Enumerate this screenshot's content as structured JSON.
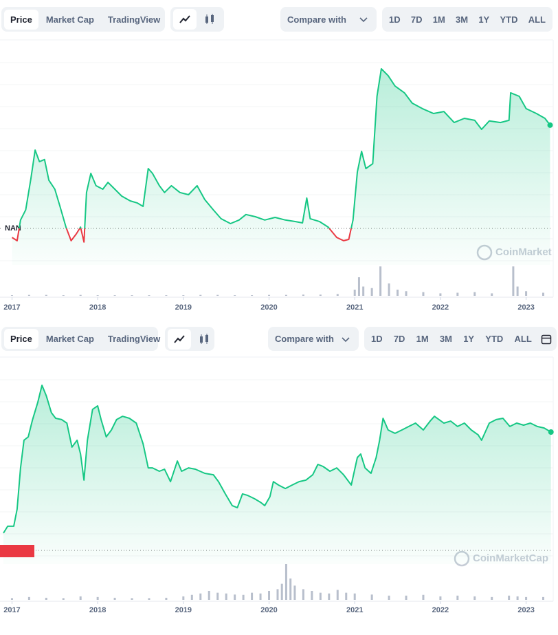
{
  "toolbars": [
    {
      "tabs": [
        "Price",
        "Market Cap",
        "TradingView"
      ],
      "compare": "Compare with",
      "ranges": [
        "1D",
        "7D",
        "1M",
        "3M",
        "1Y",
        "YTD",
        "ALL"
      ]
    },
    {
      "tabs": [
        "Price",
        "Market Cap",
        "TradingView"
      ],
      "compare": "Compare with",
      "ranges": [
        "1D",
        "7D",
        "1M",
        "3M",
        "1Y",
        "YTD",
        "ALL"
      ]
    }
  ],
  "chart_data": [
    {
      "type": "line",
      "color": "#16c784",
      "below_color": "#ea3943",
      "watermark": "CoinMarket",
      "baseline": {
        "value": 15,
        "label": "NAN"
      },
      "xlim": [
        2016.86,
        2023.3
      ],
      "ylim": [
        0,
        100
      ],
      "xticks": [
        2017,
        2018,
        2019,
        2020,
        2021,
        2022,
        2023
      ],
      "x": [
        2017.0,
        2017.06,
        2017.1,
        2017.16,
        2017.22,
        2017.27,
        2017.32,
        2017.38,
        2017.43,
        2017.5,
        2017.56,
        2017.63,
        2017.69,
        2017.75,
        2017.8,
        2017.84,
        2017.87,
        2017.92,
        2017.98,
        2018.06,
        2018.12,
        2018.2,
        2018.28,
        2018.38,
        2018.46,
        2018.53,
        2018.59,
        2018.64,
        2018.72,
        2018.78,
        2018.86,
        2018.96,
        2019.06,
        2019.16,
        2019.25,
        2019.35,
        2019.44,
        2019.55,
        2019.65,
        2019.73,
        2019.84,
        2019.95,
        2020.07,
        2020.19,
        2020.31,
        2020.39,
        2020.44,
        2020.48,
        2020.59,
        2020.69,
        2020.79,
        2020.87,
        2020.93,
        2020.98,
        2021.03,
        2021.08,
        2021.13,
        2021.21,
        2021.26,
        2021.31,
        2021.39,
        2021.47,
        2021.58,
        2021.67,
        2021.79,
        2021.92,
        2022.04,
        2022.16,
        2022.28,
        2022.4,
        2022.48,
        2022.57,
        2022.7,
        2022.8,
        2022.82,
        2022.92,
        2023.0,
        2023.12,
        2023.22,
        2023.28
      ],
      "values": [
        10.9,
        9.4,
        18.8,
        23.4,
        37.5,
        50.6,
        45.3,
        46.3,
        36.9,
        32.8,
        25,
        15.6,
        9.4,
        12.5,
        15.6,
        8.8,
        31.3,
        40,
        34.4,
        32.8,
        35.9,
        32.8,
        29.7,
        27.5,
        26.6,
        25,
        42.2,
        40,
        34.4,
        31.3,
        34.4,
        31.3,
        30.3,
        34.4,
        28.1,
        23.4,
        19.4,
        17.2,
        18.8,
        21.3,
        20.3,
        18.8,
        20,
        18.8,
        18.1,
        17.5,
        28.8,
        19.4,
        18.1,
        15.6,
        10.9,
        9.4,
        10,
        18.8,
        40.6,
        50,
        42.2,
        44.4,
        75,
        87.5,
        84.4,
        79.7,
        76.6,
        71.9,
        69.4,
        67.2,
        68.1,
        63.1,
        65,
        64.1,
        60,
        63.8,
        63.1,
        64.1,
        76.6,
        75,
        69.4,
        67.2,
        65,
        61.9
      ],
      "volume": {
        "color": "#b8bfcc",
        "ylim": [
          0,
          100
        ],
        "x": [
          2017.0,
          2017.2,
          2017.4,
          2017.6,
          2017.8,
          2018.0,
          2018.2,
          2018.4,
          2018.6,
          2018.8,
          2019.0,
          2019.2,
          2019.4,
          2019.6,
          2019.8,
          2020.0,
          2020.2,
          2020.4,
          2020.6,
          2020.8,
          2021.0,
          2021.05,
          2021.1,
          2021.2,
          2021.3,
          2021.4,
          2021.5,
          2021.6,
          2021.8,
          2022.0,
          2022.2,
          2022.4,
          2022.6,
          2022.85,
          2022.9,
          2023.0,
          2023.2
        ],
        "values": [
          2,
          3,
          3,
          2,
          3,
          2,
          2,
          2,
          2,
          2,
          2,
          3,
          3,
          2,
          2,
          3,
          3,
          4,
          4,
          6,
          20,
          60,
          30,
          25,
          95,
          40,
          20,
          15,
          12,
          8,
          10,
          12,
          8,
          95,
          30,
          15,
          10
        ]
      }
    },
    {
      "type": "line",
      "color": "#16c784",
      "watermark": "CoinMarketCap",
      "baseline": 0,
      "xlim": [
        2016.86,
        2023.3
      ],
      "ylim": [
        0,
        100
      ],
      "xticks": [
        2017,
        2018,
        2019,
        2020,
        2021,
        2022,
        2023
      ],
      "x": [
        2016.9,
        2016.95,
        2017.02,
        2017.06,
        2017.1,
        2017.14,
        2017.19,
        2017.24,
        2017.3,
        2017.35,
        2017.4,
        2017.46,
        2017.51,
        2017.58,
        2017.64,
        2017.7,
        2017.76,
        2017.8,
        2017.84,
        2017.88,
        2017.94,
        2018.0,
        2018.04,
        2018.1,
        2018.16,
        2018.22,
        2018.29,
        2018.37,
        2018.45,
        2018.53,
        2018.59,
        2018.64,
        2018.72,
        2018.78,
        2018.85,
        2018.93,
        2018.98,
        2019.06,
        2019.14,
        2019.25,
        2019.35,
        2019.41,
        2019.49,
        2019.57,
        2019.63,
        2019.69,
        2019.75,
        2019.83,
        2019.9,
        2019.95,
        2020.01,
        2020.05,
        2020.11,
        2020.19,
        2020.27,
        2020.35,
        2020.43,
        2020.51,
        2020.57,
        2020.63,
        2020.71,
        2020.79,
        2020.87,
        2020.96,
        2021.03,
        2021.07,
        2021.12,
        2021.19,
        2021.25,
        2021.29,
        2021.33,
        2021.39,
        2021.47,
        2021.55,
        2021.63,
        2021.71,
        2021.8,
        2021.88,
        2021.93,
        2022.04,
        2022.12,
        2022.2,
        2022.28,
        2022.36,
        2022.44,
        2022.48,
        2022.57,
        2022.65,
        2022.73,
        2022.81,
        2022.89,
        2022.97,
        2023.05,
        2023.13,
        2023.21,
        2023.29
      ],
      "values": [
        9.3,
        13,
        13,
        22.2,
        44.4,
        59.3,
        61.1,
        70.4,
        79.6,
        88.9,
        83.3,
        74.1,
        71.1,
        70.4,
        68.5,
        55.6,
        59.3,
        51.9,
        37.8,
        59.3,
        75.9,
        77.8,
        70.4,
        61.1,
        64.8,
        70.4,
        72.2,
        71.1,
        68.5,
        57.4,
        44.4,
        44.4,
        42.6,
        43.7,
        37,
        48.1,
        42.6,
        44.4,
        43.7,
        41.5,
        40.7,
        37,
        30.4,
        24.1,
        23,
        30.4,
        29.6,
        27.8,
        25.9,
        24.1,
        28.9,
        37,
        35.2,
        33.3,
        35.2,
        37,
        37.8,
        40.7,
        46.3,
        45.2,
        42.6,
        44.4,
        40.7,
        35.2,
        50,
        51.9,
        44.4,
        41.5,
        50,
        59.3,
        71.1,
        64.8,
        63,
        64.8,
        66.7,
        68.5,
        64.8,
        69.6,
        72.2,
        68.5,
        69.6,
        66.7,
        68.5,
        64.8,
        62.2,
        59.3,
        68.5,
        70.4,
        71.1,
        66.7,
        68.5,
        67.4,
        68.5,
        66.7,
        65.9,
        63.7
      ],
      "volume": {
        "color": "#b8bfcc",
        "ylim": [
          0,
          100
        ],
        "x": [
          2017.0,
          2017.2,
          2017.4,
          2017.6,
          2017.8,
          2018.0,
          2018.2,
          2018.4,
          2018.6,
          2018.8,
          2019.0,
          2019.1,
          2019.2,
          2019.3,
          2019.4,
          2019.5,
          2019.6,
          2019.7,
          2019.8,
          2019.9,
          2020.0,
          2020.1,
          2020.15,
          2020.2,
          2020.25,
          2020.3,
          2020.4,
          2020.5,
          2020.6,
          2020.7,
          2020.8,
          2020.9,
          2021.0,
          2021.2,
          2021.4,
          2021.6,
          2021.8,
          2022.0,
          2022.2,
          2022.4,
          2022.6,
          2022.8,
          2022.9,
          2023.0,
          2023.2
        ],
        "values": [
          5,
          8,
          6,
          5,
          10,
          8,
          6,
          5,
          5,
          6,
          10,
          14,
          18,
          25,
          20,
          18,
          15,
          14,
          20,
          18,
          25,
          30,
          45,
          100,
          60,
          40,
          30,
          25,
          20,
          18,
          28,
          20,
          18,
          15,
          12,
          12,
          14,
          10,
          12,
          10,
          8,
          12,
          10,
          8,
          8
        ]
      }
    }
  ]
}
